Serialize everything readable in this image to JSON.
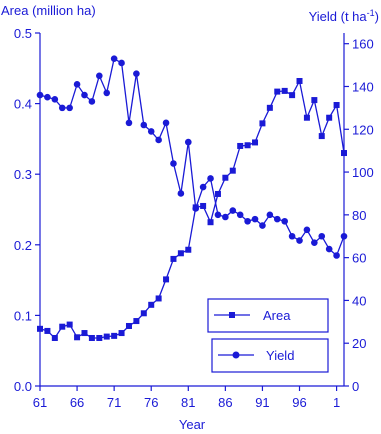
{
  "colors": {
    "series": "#1a1ad6"
  },
  "chart_data": {
    "type": "line",
    "title": "",
    "xlabel": "Year",
    "ylabel_left": "Area (million ha)",
    "ylabel_right_prefix": "Yield (t ha",
    "ylabel_right_sup": "-1",
    "ylabel_right_suffix": ")",
    "xlim": [
      1961,
      2002
    ],
    "ylim_left": [
      0,
      0.5
    ],
    "ylim_right": [
      0,
      165
    ],
    "x_ticks": [
      1961,
      1966,
      1971,
      1976,
      1981,
      1986,
      1991,
      1996,
      2001
    ],
    "x_tick_labels": [
      "61",
      "66",
      "71",
      "76",
      "81",
      "86",
      "91",
      "96",
      "1"
    ],
    "y_left_ticks": [
      0,
      0.1,
      0.2,
      0.3,
      0.4,
      0.5
    ],
    "y_left_tick_labels": [
      "0.0",
      "0.1",
      "0.2",
      "0.3",
      "0.4",
      "0.5"
    ],
    "y_right_ticks": [
      0,
      20,
      40,
      60,
      80,
      100,
      120,
      140,
      160
    ],
    "y_right_tick_labels": [
      "0",
      "20",
      "40",
      "60",
      "80",
      "100",
      "120",
      "140",
      "160"
    ],
    "legend": {
      "position": "bottom-right",
      "entries": [
        "Area",
        "Yield"
      ]
    },
    "series": [
      {
        "name": "Area",
        "axis": "left",
        "marker": "square",
        "x": [
          1961,
          1962,
          1963,
          1964,
          1965,
          1966,
          1967,
          1968,
          1969,
          1970,
          1971,
          1972,
          1973,
          1974,
          1975,
          1976,
          1977,
          1978,
          1979,
          1980,
          1981,
          1982,
          1983,
          1984,
          1985,
          1986,
          1987,
          1988,
          1989,
          1990,
          1991,
          1992,
          1993,
          1994,
          1995,
          1996,
          1997,
          1998,
          1999,
          2000,
          2001,
          2002
        ],
        "values": [
          0.081,
          0.078,
          0.068,
          0.084,
          0.087,
          0.069,
          0.075,
          0.068,
          0.068,
          0.07,
          0.071,
          0.075,
          0.085,
          0.092,
          0.103,
          0.115,
          0.124,
          0.151,
          0.18,
          0.188,
          0.193,
          0.253,
          0.255,
          0.232,
          0.272,
          0.295,
          0.305,
          0.34,
          0.341,
          0.345,
          0.372,
          0.394,
          0.417,
          0.418,
          0.412,
          0.432,
          0.38,
          0.405,
          0.354,
          0.38,
          0.398,
          0.33
        ]
      },
      {
        "name": "Yield",
        "axis": "right",
        "marker": "circle",
        "x": [
          1961,
          1962,
          1963,
          1964,
          1965,
          1966,
          1967,
          1968,
          1969,
          1970,
          1971,
          1972,
          1973,
          1974,
          1975,
          1976,
          1977,
          1978,
          1979,
          1980,
          1981,
          1982,
          1983,
          1984,
          1985,
          1986,
          1987,
          1988,
          1989,
          1990,
          1991,
          1992,
          1993,
          1994,
          1995,
          1996,
          1997,
          1998,
          1999,
          2000,
          2001,
          2002
        ],
        "values": [
          136,
          135,
          134,
          130,
          130,
          141,
          136,
          133,
          145,
          137,
          153,
          151,
          123,
          146,
          122,
          119,
          115,
          123,
          104,
          90,
          114,
          83,
          93,
          97,
          80,
          79,
          82,
          80,
          77,
          78,
          75,
          80,
          78,
          77,
          70,
          68,
          73,
          67,
          70,
          64,
          61,
          70
        ]
      }
    ]
  }
}
